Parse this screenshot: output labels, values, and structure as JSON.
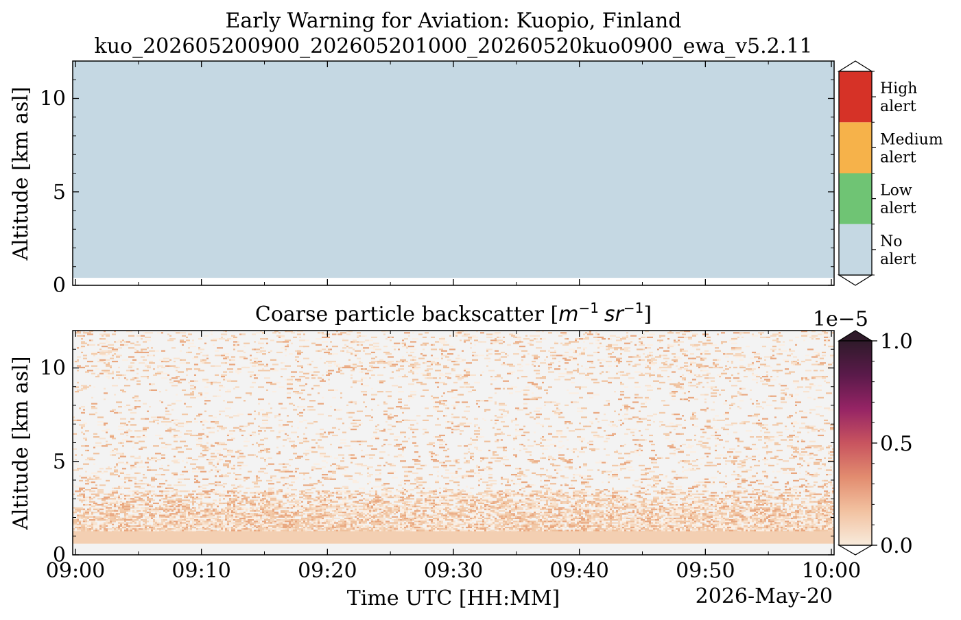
{
  "figure": {
    "title_line1": "Early Warning for Aviation: Kuopio, Finland",
    "title_line2": "kuo_202605200900_202605201000_20260520kuo0900_ewa_v5.2.11"
  },
  "chart_data": [
    {
      "type": "heatmap",
      "name": "alert-panel",
      "title": "",
      "ylabel": "Altitude [km asl]",
      "xlim_minutes": [
        0,
        60
      ],
      "ylim": [
        0,
        12
      ],
      "yticks": [
        0,
        5,
        10
      ],
      "yticklabels": [
        "0",
        "5",
        "10"
      ],
      "field": {
        "description_value": "No alert everywhere from 0.4 km to 12 km",
        "layer_bottom_km": 0.4,
        "layer_top_km": 12,
        "category": "No alert"
      },
      "colorbar": {
        "type": "categorical",
        "categories": [
          {
            "label_line1": "No",
            "label_line2": "alert",
            "color": "#c5d8e3"
          },
          {
            "label_line1": "Low",
            "label_line2": "alert",
            "color": "#6fc474"
          },
          {
            "label_line1": "Medium",
            "label_line2": "alert",
            "color": "#f6b24a"
          },
          {
            "label_line1": "High",
            "label_line2": "alert",
            "color": "#d63227"
          }
        ],
        "extend": "both",
        "over_color": "#ffffff",
        "under_color": "#ffffff"
      }
    },
    {
      "type": "heatmap",
      "name": "backscatter-panel",
      "title_text": "Coarse particle backscatter [",
      "title_unit_m": "m",
      "title_unit_m_exp": "−1",
      "title_unit_sr": "sr",
      "title_unit_sr_exp": "−1",
      "title_close": "]",
      "ylabel": "Altitude [km asl]",
      "xlabel": "Time UTC [HH:MM]",
      "date_label": "2026-May-20",
      "xlim_minutes": [
        0,
        60
      ],
      "xticks_minutes": [
        0,
        10,
        20,
        30,
        40,
        50,
        60
      ],
      "xticklabels": [
        "09:00",
        "09:10",
        "09:20",
        "09:30",
        "09:40",
        "09:50",
        "10:00"
      ],
      "ylim": [
        0,
        12
      ],
      "yticks": [
        0,
        5,
        10
      ],
      "yticklabels": [
        "0",
        "5",
        "10"
      ],
      "field_summary": {
        "background_color": "#f3f3f3",
        "lowest_data_km": 0.6,
        "dense_layer_km": [
          0.6,
          1.3
        ],
        "moderate_layer_km": [
          1.3,
          3.5
        ],
        "sparse_aloft_km": [
          3.5,
          12
        ],
        "typical_value": 8e-07
      },
      "colorbar": {
        "type": "continuous",
        "vmin": 0.0,
        "vmax": 1.0,
        "scale_label": "1e−5",
        "ticks": [
          0.0,
          0.5,
          1.0
        ],
        "ticklabels": [
          "0.0",
          "0.5",
          "1.0"
        ],
        "colormap_stops": [
          "#f8ebdc",
          "#f2c2a1",
          "#e28c6f",
          "#c8545f",
          "#962465",
          "#5a1a4a",
          "#2f1a2a"
        ],
        "extend": "both",
        "over_color": "#2f1a2a",
        "under_color": "#ffffff"
      }
    }
  ]
}
